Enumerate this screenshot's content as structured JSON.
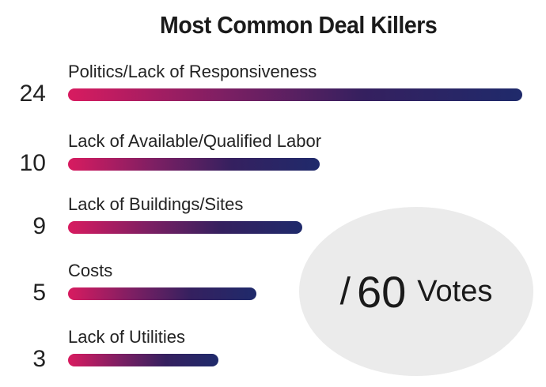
{
  "chart_data": {
    "type": "bar",
    "orientation": "horizontal",
    "title": "Most Common Deal Killers",
    "categories": [
      "Politics/Lack of Responsiveness",
      "Lack of Available/Qualified Labor",
      "Lack of Buildings/Sites",
      "Costs",
      "Lack of Utilities"
    ],
    "values": [
      24,
      10,
      9,
      5,
      3
    ],
    "gradient_colors": [
      "#d81b60",
      "#1f2a6b"
    ],
    "legend": "none",
    "grid": false
  },
  "total": {
    "slash": "/",
    "number": "60",
    "unit": "Votes"
  }
}
